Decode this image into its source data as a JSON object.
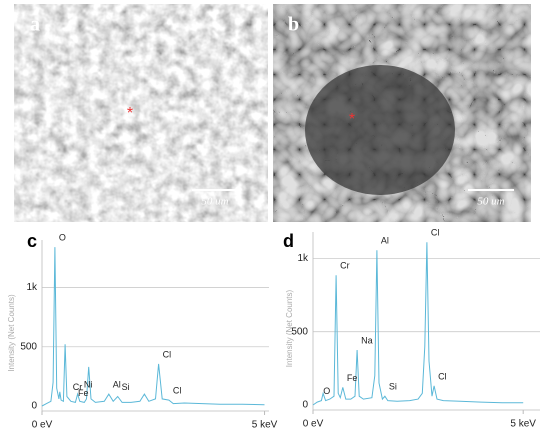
{
  "panels": [
    {
      "label": "a",
      "scale_bar": "50 um"
    },
    {
      "label": "b",
      "scale_bar": "50 um"
    }
  ],
  "chart_data": [
    {
      "type": "line",
      "panel_label": "c",
      "y_label": "Intensity (Net Counts)",
      "color": "#5bb8d8",
      "grid": true,
      "xlim": [
        0,
        5.1
      ],
      "xticks": [
        {
          "value": 0,
          "label": "0 eV"
        },
        {
          "value": 5,
          "label": "5 keV"
        }
      ],
      "ylim": [
        0,
        1400
      ],
      "yticks": [
        0,
        500,
        {
          "value": 1000,
          "label": "1k"
        }
      ],
      "x": [
        0,
        0.1,
        0.2,
        0.25,
        0.29,
        0.33,
        0.38,
        0.4,
        0.43,
        0.48,
        0.52,
        0.56,
        0.65,
        0.75,
        0.8,
        0.85,
        0.95,
        1.0,
        1.05,
        1.1,
        1.2,
        1.4,
        1.5,
        1.6,
        1.7,
        1.8,
        2.0,
        2.2,
        2.3,
        2.4,
        2.55,
        2.62,
        2.7,
        2.85,
        2.95,
        3.2,
        3.6,
        4,
        4.5,
        5
      ],
      "values": [
        0,
        20,
        40,
        200,
        1340,
        150,
        60,
        120,
        50,
        40,
        520,
        80,
        40,
        30,
        100,
        40,
        30,
        60,
        330,
        60,
        30,
        40,
        100,
        40,
        80,
        30,
        30,
        40,
        100,
        40,
        60,
        355,
        60,
        50,
        20,
        25,
        20,
        15,
        15,
        10
      ],
      "annotations": [
        {
          "text": "O",
          "x": 0.29
        },
        {
          "text": "Cr",
          "x": 0.6
        },
        {
          "text": "Fe",
          "x": 0.72
        },
        {
          "text": "Ni",
          "x": 0.85
        },
        {
          "text": "Al",
          "x": 1.5
        },
        {
          "text": "Si",
          "x": 1.7
        },
        {
          "text": "Cl",
          "x": 2.62
        },
        {
          "text": "Cl",
          "x": 2.85
        }
      ]
    },
    {
      "type": "line",
      "panel_label": "d",
      "y_label": "Intensity (Net Counts)",
      "color": "#5bb8d8",
      "grid": true,
      "xlim": [
        0,
        5.4
      ],
      "xticks": [
        {
          "value": 0,
          "label": "0 eV"
        },
        {
          "value": 5,
          "label": "5 keV"
        }
      ],
      "ylim": [
        0,
        1180
      ],
      "yticks": [
        0,
        500,
        {
          "value": 1000,
          "label": "1k"
        }
      ],
      "x": [
        0,
        0.1,
        0.2,
        0.24,
        0.3,
        0.4,
        0.5,
        0.55,
        0.6,
        0.65,
        0.71,
        0.78,
        0.9,
        1.0,
        1.05,
        1.1,
        1.2,
        1.4,
        1.47,
        1.52,
        1.57,
        1.65,
        1.71,
        1.78,
        2.0,
        2.3,
        2.5,
        2.6,
        2.66,
        2.71,
        2.76,
        2.83,
        2.88,
        2.95,
        3.1,
        3.5,
        4,
        4.5,
        5
      ],
      "values": [
        0,
        20,
        30,
        80,
        30,
        40,
        60,
        885,
        80,
        50,
        120,
        40,
        40,
        60,
        375,
        60,
        40,
        50,
        200,
        1055,
        150,
        40,
        60,
        30,
        25,
        30,
        40,
        80,
        400,
        1110,
        300,
        60,
        130,
        40,
        30,
        25,
        20,
        15,
        15
      ],
      "annotations": [
        {
          "text": "O",
          "x": 0.15
        },
        {
          "text": "Cr",
          "x": 0.55
        },
        {
          "text": "Fe",
          "x": 0.71
        },
        {
          "text": "Na",
          "x": 1.05
        },
        {
          "text": "Al",
          "x": 1.52
        },
        {
          "text": "Si",
          "x": 1.71
        },
        {
          "text": "Cl",
          "x": 2.71
        },
        {
          "text": "Cl",
          "x": 2.88
        }
      ]
    }
  ]
}
